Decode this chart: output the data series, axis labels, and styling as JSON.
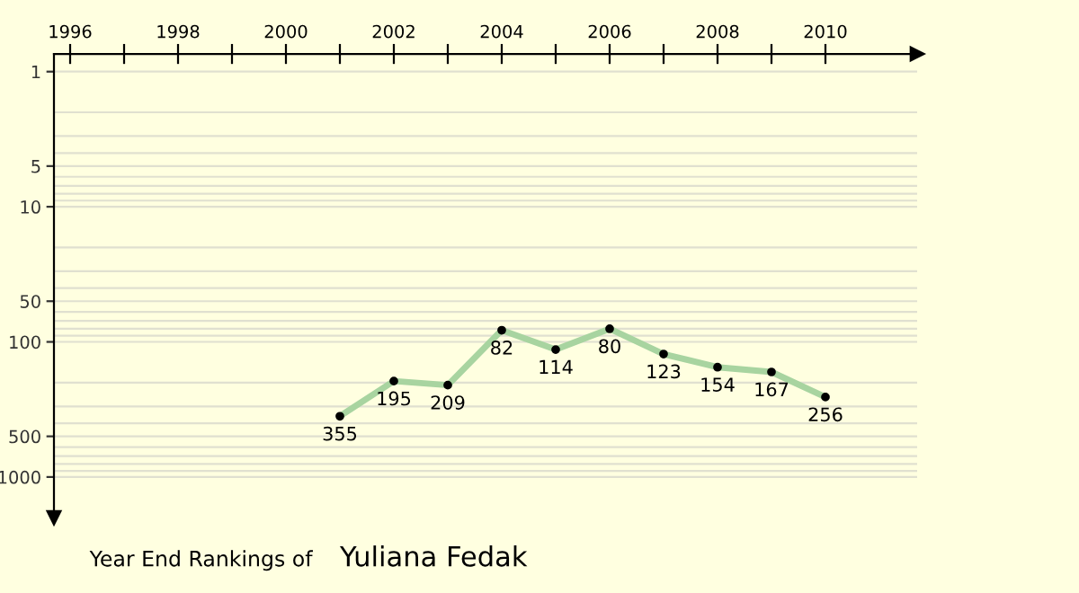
{
  "chart_data": {
    "type": "line",
    "title": "Year End Rankings of",
    "subtitle": "Yuliana Fedak",
    "x": [
      2001,
      2002,
      2003,
      2004,
      2005,
      2006,
      2007,
      2008,
      2009,
      2010
    ],
    "series": [
      {
        "color": "#a8d4a0",
        "values": [
          355,
          195,
          209,
          82,
          114,
          80,
          123,
          154,
          167,
          256
        ]
      }
    ],
    "data_labels": true,
    "marker": "circle",
    "line_style": "solid",
    "log": "y",
    "grid": "y",
    "legend": false,
    "xlim": [
      1995.7,
      2011.7
    ],
    "xticks": [
      1996,
      {
        "value": 1997,
        "label": null
      },
      1998,
      {
        "value": 1999,
        "label": null
      },
      2000,
      {
        "value": 2001,
        "label": null
      },
      2002,
      {
        "value": 2003,
        "label": null
      },
      2004,
      {
        "value": 2005,
        "label": null
      },
      2006,
      {
        "value": 2007,
        "label": null
      },
      2008,
      {
        "value": 2009,
        "label": null
      },
      2010
    ],
    "ylim": [
      2000,
      0.74
    ],
    "yticks": [
      1,
      {
        "value": 2,
        "label": null
      },
      {
        "value": 3,
        "label": null
      },
      {
        "value": 4,
        "label": null
      },
      5,
      {
        "value": 6,
        "label": null
      },
      {
        "value": 7,
        "label": null
      },
      {
        "value": 8,
        "label": null
      },
      {
        "value": 9,
        "label": null
      },
      10,
      {
        "value": 20,
        "label": null
      },
      {
        "value": 30,
        "label": null
      },
      {
        "value": 40,
        "label": null
      },
      50,
      {
        "value": 60,
        "label": null
      },
      {
        "value": 70,
        "label": null
      },
      {
        "value": 80,
        "label": null
      },
      {
        "value": 90,
        "label": null
      },
      100,
      {
        "value": 200,
        "label": null
      },
      {
        "value": 300,
        "label": null
      },
      {
        "value": 400,
        "label": null
      },
      500,
      {
        "value": 600,
        "label": null
      },
      {
        "value": 700,
        "label": null
      },
      {
        "value": 800,
        "label": null
      },
      {
        "value": 900,
        "label": null
      },
      1000
    ]
  }
}
